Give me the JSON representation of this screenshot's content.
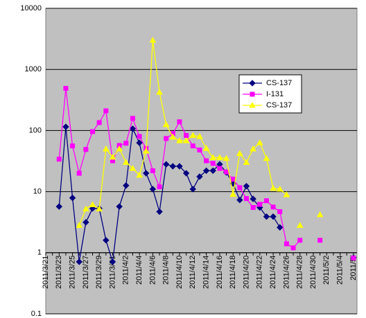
{
  "chart_data": {
    "type": "line",
    "log_y": true,
    "grid": true,
    "categories": [
      "2011/3/21",
      null,
      "2011/3/23",
      null,
      "2011/3/25",
      null,
      "2011/3/27",
      null,
      "2011/3/29",
      null,
      "2011/3/31",
      null,
      "2011/4/2",
      null,
      "2011/4/4",
      null,
      "2011/4/6",
      null,
      "2011/4/8",
      null,
      "2011/4/10",
      null,
      "2011/4/12",
      null,
      "2011/4/14",
      null,
      "2011/4/16",
      null,
      "2011/4/18",
      null,
      "2011/4/20",
      null,
      "2011/4/22",
      null,
      "2011/4/24",
      null,
      "2011/4/26",
      null,
      "2011/4/28",
      null,
      "2011/4/30",
      null,
      "2011/5/2",
      null,
      "2011/5/4",
      null,
      "2011/5/"
    ],
    "ylim": [
      0.1,
      10000
    ],
    "yticks": [
      0.1,
      1,
      10,
      100,
      1000,
      10000
    ],
    "series": [
      {
        "name": "CS-137",
        "color": "#000080",
        "marker": "diamond",
        "values": [
          null,
          null,
          5.7,
          115,
          7.9,
          0.71,
          3.15,
          5.3,
          5.3,
          1.6,
          0.71,
          5.7,
          12.6,
          107,
          63,
          20,
          11,
          4.7,
          28,
          26,
          26,
          20,
          11,
          17.6,
          22,
          22,
          28,
          20.6,
          13.6,
          7.3,
          12.3,
          7.6,
          5.5,
          3.9,
          3.9,
          2.6,
          null,
          null,
          null,
          null,
          null,
          null,
          null,
          null,
          null,
          null,
          0.83
        ]
      },
      {
        "name": "I-131",
        "color": "#ff00ff",
        "marker": "square",
        "values": [
          null,
          null,
          34,
          490,
          56,
          20,
          49,
          96,
          135,
          210,
          32,
          57,
          62,
          158,
          80,
          51,
          22,
          12,
          74,
          89,
          139,
          83,
          56,
          48,
          32,
          29,
          24,
          21,
          16,
          11.6,
          7.7,
          5.5,
          6.2,
          7.1,
          5.6,
          4.7,
          1.4,
          1.2,
          1.6,
          null,
          null,
          1.6,
          null,
          null,
          null,
          null,
          0.82
        ]
      },
      {
        "name": "CS-137",
        "color": "#ffff00",
        "marker": "triangle",
        "values": [
          null,
          null,
          null,
          null,
          null,
          2.8,
          5.2,
          6.1,
          5.2,
          50,
          36.6,
          50,
          30,
          24,
          18.6,
          46,
          3000,
          424,
          125,
          78,
          68,
          68,
          83,
          80,
          51,
          36,
          36,
          35,
          9,
          42,
          30,
          50,
          63,
          35,
          11.3,
          11,
          8.9,
          null,
          2.8,
          null,
          null,
          4.2,
          null,
          null,
          null,
          null,
          null
        ]
      }
    ]
  }
}
